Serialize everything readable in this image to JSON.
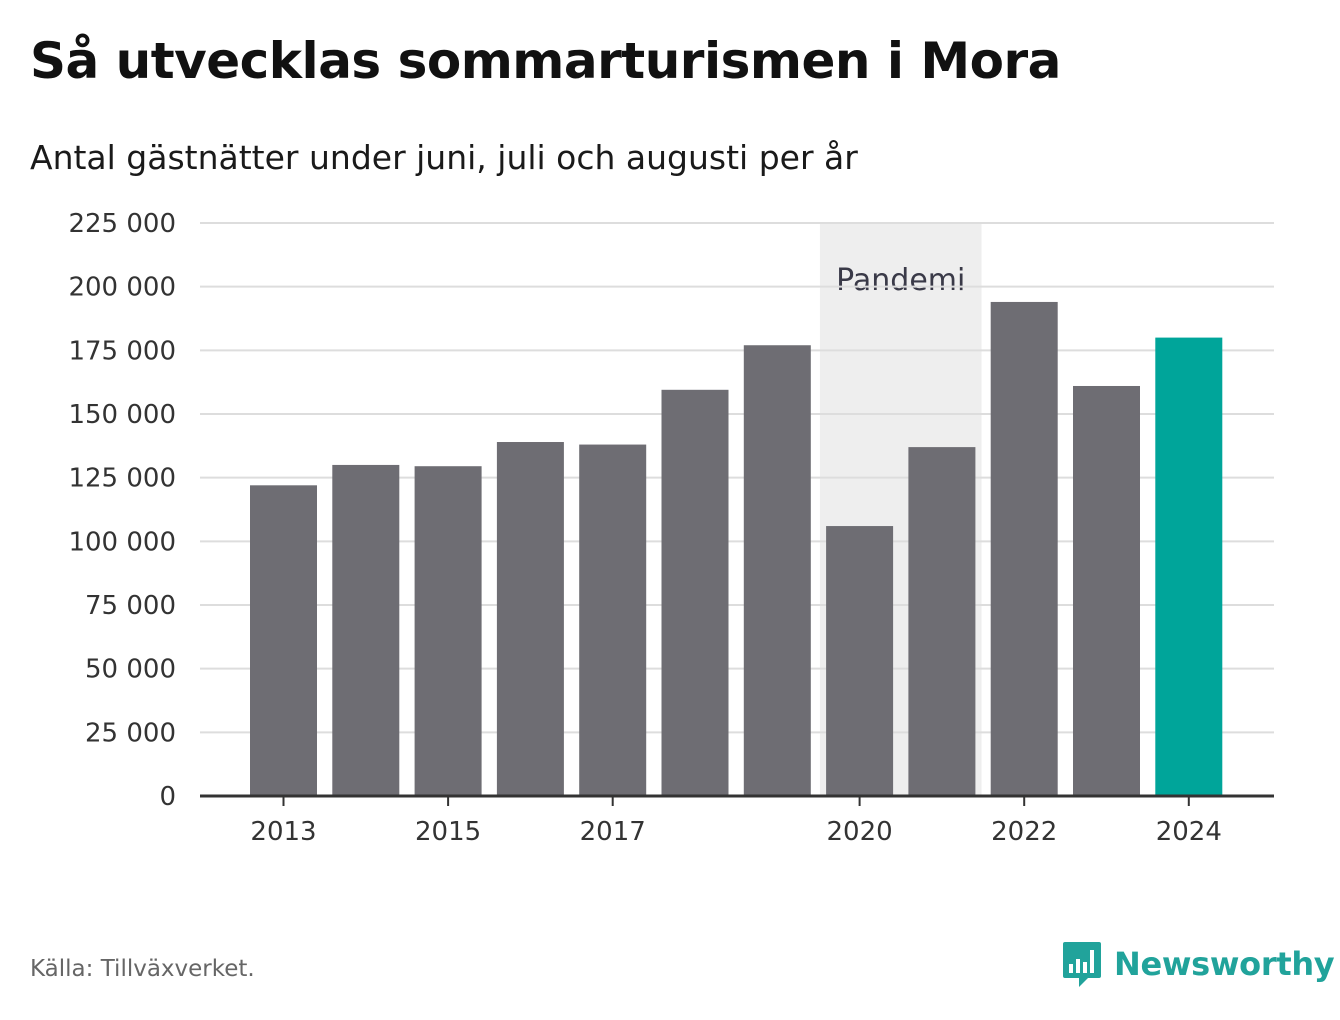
{
  "header": {
    "title": "Så utvecklas sommarturismen i Mora",
    "subtitle": "Antal gästnätter under juni, juli och augusti per år"
  },
  "chart_data": {
    "type": "bar",
    "categories": [
      "2013",
      "2014",
      "2015",
      "2016",
      "2017",
      "2018",
      "2019",
      "2020",
      "2021",
      "2022",
      "2023",
      "2024"
    ],
    "values": [
      122000,
      130000,
      129500,
      139000,
      138000,
      159500,
      177000,
      106000,
      137000,
      194000,
      161000,
      180000
    ],
    "x_tick_labels": [
      "2013",
      "2015",
      "2017",
      "2020",
      "2022",
      "2024"
    ],
    "y_ticks": [
      0,
      25000,
      50000,
      75000,
      100000,
      125000,
      150000,
      175000,
      200000,
      225000
    ],
    "y_tick_labels": [
      "0",
      "25 000",
      "50 000",
      "75 000",
      "100 000",
      "125 000",
      "150 000",
      "175 000",
      "200 000",
      "225 000"
    ],
    "ylim": [
      0,
      225000
    ],
    "title": "Så utvecklas sommarturismen i Mora",
    "subtitle": "Antal gästnätter under juni, juli och augusti per år",
    "xlabel": "",
    "ylabel": "",
    "highlight_category": "2024",
    "grid": true,
    "annotations": [
      {
        "type": "band",
        "from": "2020",
        "to": "2021",
        "label": "Pandemi"
      }
    ],
    "colors": {
      "bar": "#6e6d73",
      "highlight": "#00a59a",
      "band": "#eeeeee",
      "grid": "#dddddd",
      "axis": "#333333"
    }
  },
  "footer": {
    "source": "Källa: Tillväxverket.",
    "brand": "Newsworthy"
  },
  "icons": {
    "brand_logo": "bar-chart-speech-bubble-icon"
  }
}
